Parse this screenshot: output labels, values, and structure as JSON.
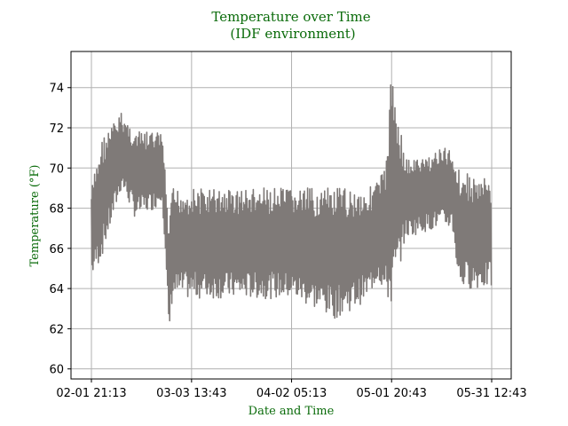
{
  "chart_data": {
    "type": "line",
    "title_line1": "Temperature over Time",
    "title_line2": "(IDF environment)",
    "xlabel": "Date and Time",
    "ylabel": "Temperature (°F)",
    "grid": true,
    "ylim": [
      59.5,
      75.8
    ],
    "y_ticks": [
      60,
      62,
      64,
      66,
      68,
      70,
      72,
      74
    ],
    "x_ticks": [
      "02-01 21:13",
      "03-03 13:43",
      "04-02 05:13",
      "05-01 20:43",
      "05-31 12:43"
    ],
    "series": [
      {
        "color": "#7f7a78",
        "x": [
          "02-01 21:13",
          "02-04 21:13",
          "02-10 21:13",
          "02-14 21:13",
          "02-20 21:13",
          "02-22 21:13",
          "02-24 21:13",
          "02-25 21:13",
          "02-27 21:13",
          "03-01 21:13",
          "03-03 13:43",
          "03-09 21:13",
          "03-15 21:13",
          "03-21 21:13",
          "03-27 21:13",
          "04-02 05:13",
          "04-08 21:13",
          "04-14 21:13",
          "04-20 21:13",
          "04-24 21:13",
          "04-27 21:13",
          "04-29 21:13",
          "05-01 20:43",
          "05-05 21:13",
          "05-10 21:13",
          "05-15 21:13",
          "05-19 21:13",
          "05-21 21:13",
          "05-26 21:13",
          "05-31 12:43"
        ],
        "low": [
          64.5,
          65.5,
          69.0,
          67.5,
          68.0,
          68.5,
          61.5,
          63.5,
          63.5,
          63.5,
          63.5,
          63.5,
          63.5,
          63.5,
          63.5,
          63.5,
          63.0,
          62.5,
          63.0,
          63.5,
          64.5,
          63.5,
          63.0,
          66.5,
          66.8,
          67.0,
          67.0,
          64.0,
          64.0,
          64.0
        ],
        "high": [
          69.0,
          71.5,
          72.8,
          71.8,
          71.8,
          71.8,
          67.0,
          69.0,
          69.0,
          69.0,
          69.0,
          69.0,
          69.0,
          69.0,
          69.0,
          69.0,
          69.0,
          69.0,
          69.0,
          69.0,
          69.5,
          70.0,
          75.0,
          70.5,
          70.5,
          71.0,
          71.0,
          70.0,
          69.5,
          69.5
        ]
      }
    ]
  }
}
